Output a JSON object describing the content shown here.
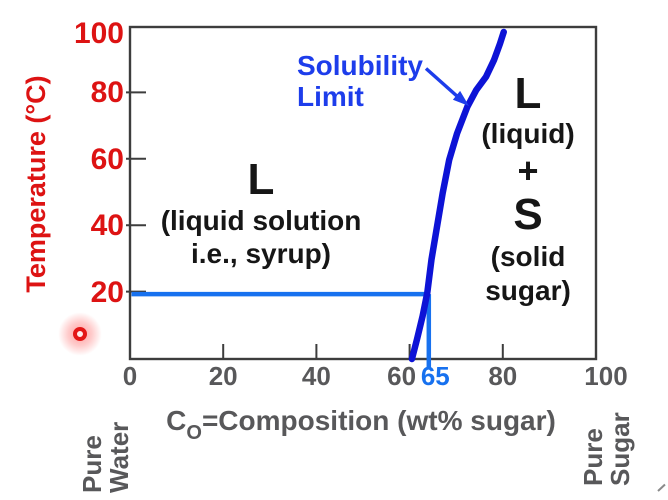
{
  "figure": {
    "background": "#ffffff",
    "colors": {
      "red": "#dd1313",
      "gray_text": "#58585a",
      "black_text": "#161616",
      "border": "#3d3d3d",
      "curve_blue": "#0d13d6",
      "label_blue": "#1d3deb",
      "tie_blue": "#1771ef"
    },
    "y_axis": {
      "title": "Temperature (°C)",
      "ticks": [
        {
          "value": 100,
          "label": "100"
        },
        {
          "value": 80,
          "label": "80"
        },
        {
          "value": 60,
          "label": "60"
        },
        {
          "value": 40,
          "label": "40"
        },
        {
          "value": 20,
          "label": "20"
        }
      ]
    },
    "x_axis": {
      "title_prefix": "C",
      "title_sub": "O",
      "title_rest": "=Composition (wt% sugar)",
      "ticks": [
        {
          "value": 0,
          "label": "0"
        },
        {
          "value": 20,
          "label": "20"
        },
        {
          "value": 40,
          "label": "40"
        },
        {
          "value": 60,
          "label": "60"
        },
        {
          "value": 80,
          "label": "80"
        },
        {
          "value": 100,
          "label": "100"
        }
      ],
      "special_tick": {
        "value": 65,
        "label": "65"
      }
    },
    "solubility_label": {
      "line1": "Solubility",
      "line2": "Limit"
    },
    "left_region": {
      "symbol": "L",
      "line2": "(liquid solution",
      "line3": "i.e., syrup)"
    },
    "right_region": {
      "symbol_l": "L",
      "line2": "(liquid)",
      "plus": "+",
      "symbol_s": "S",
      "line5": "(solid",
      "line6": "sugar)"
    },
    "endpoints": {
      "left": {
        "line1": "Pure",
        "line2": "Water"
      },
      "right": {
        "line1": "Pure",
        "line2": "Sugar"
      }
    }
  },
  "chart_data": {
    "type": "line",
    "title": "Sugar-water solubility phase diagram",
    "xlabel": "CO=Composition (wt% sugar)",
    "ylabel": "Temperature (°C)",
    "xlim": [
      0,
      100
    ],
    "ylim": [
      0,
      100
    ],
    "x_ticks": [
      0,
      20,
      40,
      60,
      80,
      100
    ],
    "y_ticks": [
      20,
      40,
      60,
      80,
      100
    ],
    "grid": false,
    "legend_position": "none",
    "series": [
      {
        "name": "Solubility Limit",
        "x": [
          60.5,
          61.6,
          62.8,
          63.8,
          64.7,
          65.9,
          67.1,
          68.5,
          70.2,
          72.4,
          74.3,
          76.4,
          78.1,
          79.4,
          80.2
        ],
        "y": [
          0,
          6,
          13,
          20,
          30,
          40,
          50,
          60,
          68,
          76,
          81,
          85,
          90,
          95,
          98.5
        ]
      }
    ],
    "regions": [
      {
        "label": "L (liquid solution i.e., syrup)",
        "side": "left of curve"
      },
      {
        "label": "L (liquid) + S (solid sugar)",
        "side": "right of curve"
      }
    ],
    "annotations": {
      "tie_temperature": 20,
      "tie_composition": 65,
      "tie_composition_label": "65"
    }
  }
}
